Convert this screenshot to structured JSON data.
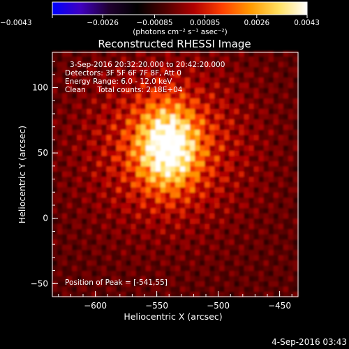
{
  "chart_data": {
    "type": "heatmap",
    "title": "Reconstructed RHESSI Image",
    "xlabel": "Heliocentric X (arcsec)",
    "ylabel": "Heliocentric Y (arcsec)",
    "xlim": [
      -635,
      -435
    ],
    "ylim": [
      -60,
      127
    ],
    "x_ticks": [
      -600,
      -550,
      -500,
      -450
    ],
    "x_tick_labels": [
      "−600",
      "−550",
      "−500",
      "−450"
    ],
    "y_ticks": [
      -50,
      0,
      50,
      100
    ],
    "y_tick_labels": [
      "−50",
      "0",
      "50",
      "100"
    ],
    "grid": false,
    "colorbar": {
      "min": -0.0043,
      "max": 0.0043,
      "ticks": [
        -0.0043,
        -0.0026,
        -0.00085,
        0.00085,
        0.0026,
        0.0043
      ],
      "tick_labels": [
        "−0.0043",
        "−0.0026",
        "−0.00085",
        "0.00085",
        "0.0026",
        "0.0043"
      ],
      "unit_label": "(photons cm⁻² s⁻¹ asec⁻²)",
      "colors": [
        "#0000ff",
        "#4000c0",
        "#200030",
        "#000000",
        "#500000",
        "#b00000",
        "#ff4000",
        "#ff9a00",
        "#ffe060",
        "#ffffff"
      ]
    },
    "source": {
      "x": -541,
      "y": 55,
      "sigma_x": 16,
      "sigma_y": 20,
      "peak": 0.0043
    },
    "annotations": [
      "3-Sep-2016 20:32:20.000 to 20:42:20.000",
      "Detectors: 3F 5F 6F 7F 8F, Att 0",
      "Energy Range: 6.0 - 12.0 keV",
      "Clean     Total counts: 2.18E+04"
    ],
    "peak_label": "Position of Peak = [-541,55]"
  },
  "footer_timestamp": "4-Sep-2016 03:43"
}
